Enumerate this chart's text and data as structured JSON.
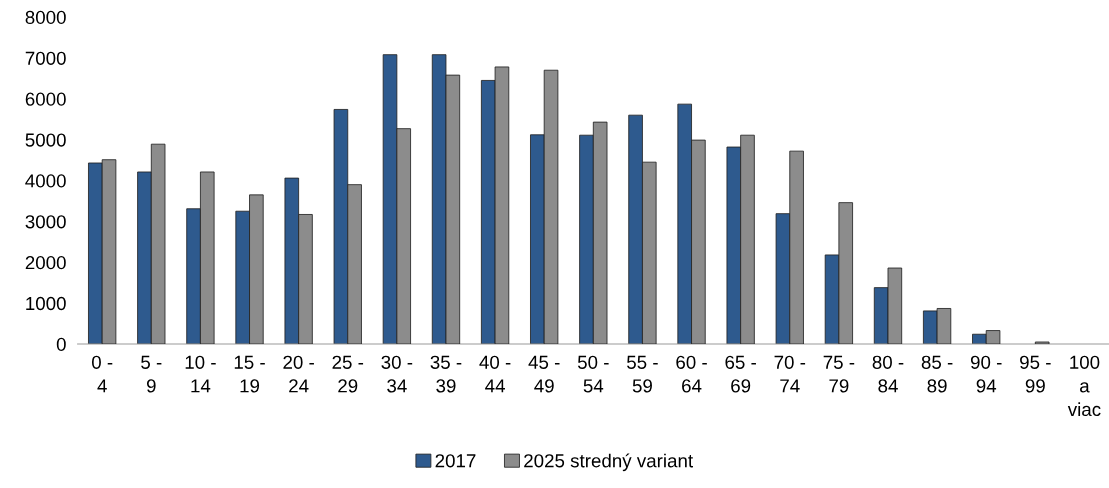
{
  "chart_data": {
    "type": "bar",
    "categories": [
      "0 -\n4",
      "5 -\n9",
      "10 -\n14",
      "15 -\n19",
      "20 -\n24",
      "25 -\n29",
      "30 -\n34",
      "35 -\n39",
      "40 -\n44",
      "45 -\n49",
      "50 -\n54",
      "55 -\n59",
      "60 -\n64",
      "65 -\n69",
      "70 -\n74",
      "75 -\n79",
      "80 -\n84",
      "85 -\n89",
      "90 -\n94",
      "95 -\n99",
      "100\na\nviac"
    ],
    "series": [
      {
        "name": "2017",
        "color": "#2e5a8e",
        "values": [
          4430,
          4210,
          3310,
          3250,
          4060,
          5740,
          7080,
          7080,
          6450,
          5120,
          5110,
          5600,
          5870,
          4820,
          3190,
          2180,
          1380,
          810,
          240,
          null,
          null
        ]
      },
      {
        "name": "2025 stredný variant",
        "color": "#8c8c8c",
        "values": [
          4510,
          4890,
          4210,
          3650,
          3170,
          3900,
          5270,
          6580,
          6780,
          6700,
          5430,
          4450,
          4990,
          5110,
          4720,
          3460,
          1860,
          870,
          330,
          50,
          null
        ]
      }
    ],
    "ylim": [
      0,
      8000
    ],
    "yticks": [
      0,
      1000,
      2000,
      3000,
      4000,
      5000,
      6000,
      7000,
      8000
    ],
    "grid": false,
    "legend": "bottom"
  }
}
